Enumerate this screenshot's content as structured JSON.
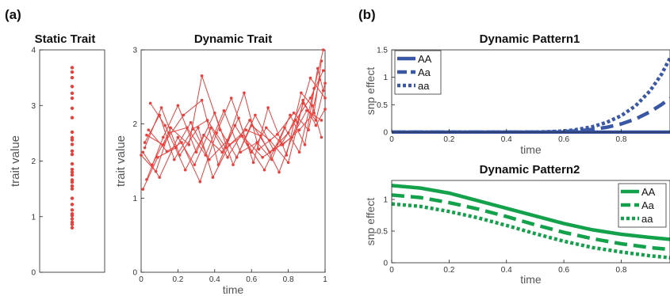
{
  "panel_labels": {
    "a": "(a)",
    "b": "(b)"
  },
  "colors": {
    "red": "#e8403c",
    "blue": "#3a57a6",
    "green": "#13a14b",
    "axis": "#222222",
    "label_gray": "#555555"
  },
  "chart_data": [
    {
      "id": "static",
      "type": "scatter",
      "title": "Static Trait",
      "ylabel": "trait value",
      "xlabel": "",
      "ylim": [
        0,
        4
      ],
      "yticks": [
        "0",
        "1",
        "2",
        "3",
        "4"
      ],
      "xticks": [],
      "values": [
        3.68,
        3.6,
        3.5,
        3.34,
        3.22,
        3.13,
        2.95,
        2.78,
        2.52,
        2.42,
        2.38,
        2.3,
        2.18,
        2.12,
        1.95,
        1.85,
        1.8,
        1.75,
        1.66,
        1.62,
        1.55,
        1.5,
        1.33,
        1.22,
        1.12,
        1.05,
        1.02,
        0.96,
        0.9,
        0.86,
        0.8
      ]
    },
    {
      "id": "dynamic",
      "type": "line",
      "title": "Dynamic Trait",
      "xlabel": "time",
      "ylabel": "trait value",
      "xlim": [
        0,
        1
      ],
      "ylim": [
        0,
        3
      ],
      "xticks": [
        "0",
        "0.2",
        "0.4",
        "0.6",
        "0.8",
        "1"
      ],
      "yticks": [
        "0",
        "1",
        "2",
        "3"
      ],
      "series": [
        {
          "x": [
            0.02,
            0.1,
            0.18,
            0.28,
            0.36,
            0.46,
            0.55,
            0.66,
            0.76,
            0.84,
            0.92,
            0.99
          ],
          "y": [
            1.75,
            2.12,
            1.52,
            1.93,
            2.05,
            1.68,
            1.84,
            1.55,
            1.72,
            2.05,
            2.35,
            2.72
          ]
        },
        {
          "x": [
            0.03,
            0.12,
            0.2,
            0.3,
            0.4,
            0.5,
            0.6,
            0.7,
            0.8,
            0.88,
            0.95,
            1.0
          ],
          "y": [
            1.25,
            1.82,
            2.25,
            1.62,
            2.15,
            1.45,
            1.98,
            1.78,
            1.48,
            2.28,
            2.05,
            2.55
          ]
        },
        {
          "x": [
            0.0,
            0.08,
            0.16,
            0.26,
            0.33,
            0.43,
            0.52,
            0.62,
            0.72,
            0.82,
            0.9,
            0.98
          ],
          "y": [
            1.58,
            1.36,
            1.95,
            1.72,
            2.65,
            1.92,
            1.55,
            2.12,
            1.65,
            1.82,
            2.18,
            2.05
          ]
        },
        {
          "x": [
            0.04,
            0.14,
            0.22,
            0.32,
            0.41,
            0.49,
            0.58,
            0.67,
            0.78,
            0.86,
            0.94,
            0.99
          ],
          "y": [
            1.92,
            1.63,
            1.75,
            1.22,
            1.88,
            2.35,
            1.72,
            1.38,
            1.95,
            1.62,
            2.48,
            3.0
          ]
        },
        {
          "x": [
            0.01,
            0.09,
            0.19,
            0.27,
            0.37,
            0.47,
            0.56,
            0.64,
            0.74,
            0.83,
            0.91,
            0.97
          ],
          "y": [
            1.12,
            1.55,
            1.68,
            2.02,
            1.52,
            1.78,
            2.42,
            1.66,
            1.86,
            2.15,
            1.92,
            2.6
          ]
        },
        {
          "x": [
            0.05,
            0.13,
            0.24,
            0.34,
            0.44,
            0.53,
            0.61,
            0.69,
            0.79,
            0.87,
            0.93,
            0.98
          ],
          "y": [
            2.28,
            1.98,
            1.38,
            1.85,
            1.62,
            2.08,
            1.48,
            2.22,
            1.58,
            2.42,
            2.25,
            1.82
          ]
        },
        {
          "x": [
            0.02,
            0.11,
            0.21,
            0.31,
            0.39,
            0.48,
            0.57,
            0.65,
            0.75,
            0.85,
            0.92,
            1.0
          ],
          "y": [
            1.68,
            2.22,
            1.58,
            1.95,
            1.28,
            1.72,
            1.92,
            1.84,
            1.35,
            2.02,
            2.62,
            2.35
          ]
        },
        {
          "x": [
            0.06,
            0.15,
            0.25,
            0.35,
            0.45,
            0.54,
            0.63,
            0.71,
            0.81,
            0.89,
            0.96,
            0.99
          ],
          "y": [
            1.45,
            1.88,
            1.95,
            1.58,
            2.18,
            1.62,
            1.75,
            1.52,
            2.12,
            1.72,
            2.75,
            2.45
          ]
        },
        {
          "x": [
            0.03,
            0.12,
            0.23,
            0.33,
            0.42,
            0.51,
            0.6,
            0.68,
            0.77,
            0.86,
            0.94,
            0.98
          ],
          "y": [
            1.85,
            1.72,
            2.12,
            2.32,
            1.45,
            1.98,
            1.62,
            1.95,
            1.72,
            1.92,
            2.15,
            2.85
          ]
        },
        {
          "x": [
            0.01,
            0.1,
            0.2,
            0.29,
            0.38,
            0.47,
            0.59,
            0.7,
            0.8,
            0.88,
            0.95,
            1.0
          ],
          "y": [
            1.62,
            1.28,
            1.82,
            1.45,
            1.95,
            1.55,
            2.05,
            1.62,
            1.88,
            2.32,
            1.98,
            2.2
          ]
        }
      ]
    },
    {
      "id": "pattern1",
      "type": "line",
      "title": "Dynamic Pattern1",
      "xlabel": "time",
      "ylabel": "snp effect",
      "xlim": [
        0,
        0.97
      ],
      "ylim": [
        0,
        1.5
      ],
      "xticks": [
        "0",
        "0.2",
        "0.4",
        "0.6",
        "0.8"
      ],
      "yticks": [
        "0",
        "0.5",
        "1",
        "1.5"
      ],
      "legend_position": "top-left",
      "series": [
        {
          "name": "AA",
          "style": "solid",
          "x": [
            0,
            0.1,
            0.2,
            0.3,
            0.4,
            0.5,
            0.6,
            0.7,
            0.8,
            0.9,
            0.97
          ],
          "y": [
            0,
            0,
            0,
            0,
            0,
            0,
            0,
            0,
            0,
            0,
            0
          ]
        },
        {
          "name": "Aa",
          "style": "dashed",
          "x": [
            0,
            0.1,
            0.2,
            0.3,
            0.4,
            0.5,
            0.55,
            0.6,
            0.65,
            0.7,
            0.75,
            0.8,
            0.85,
            0.9,
            0.94,
            0.97
          ],
          "y": [
            0,
            0,
            0,
            0,
            0,
            0,
            0.004,
            0.01,
            0.025,
            0.05,
            0.09,
            0.15,
            0.24,
            0.37,
            0.5,
            0.62
          ]
        },
        {
          "name": "aa",
          "style": "dotted",
          "x": [
            0,
            0.1,
            0.2,
            0.3,
            0.4,
            0.5,
            0.55,
            0.6,
            0.65,
            0.7,
            0.75,
            0.8,
            0.85,
            0.9,
            0.94,
            0.97
          ],
          "y": [
            0,
            0,
            0,
            0,
            0,
            0.002,
            0.008,
            0.02,
            0.05,
            0.1,
            0.18,
            0.3,
            0.48,
            0.75,
            1.05,
            1.35
          ]
        }
      ]
    },
    {
      "id": "pattern2",
      "type": "line",
      "title": "Dynamic Pattern2",
      "xlabel": "time",
      "ylabel": "snp effect",
      "xlim": [
        0,
        0.97
      ],
      "ylim": [
        0,
        1.3
      ],
      "xticks": [
        "0",
        "0.2",
        "0.4",
        "0.6",
        "0.8"
      ],
      "yticks": [
        "0",
        "0.5",
        "1"
      ],
      "legend_position": "top-right",
      "series": [
        {
          "name": "AA",
          "style": "solid",
          "x": [
            0,
            0.1,
            0.2,
            0.3,
            0.4,
            0.5,
            0.6,
            0.7,
            0.8,
            0.9,
            0.97
          ],
          "y": [
            1.22,
            1.18,
            1.1,
            0.98,
            0.86,
            0.74,
            0.62,
            0.52,
            0.45,
            0.4,
            0.37
          ]
        },
        {
          "name": "Aa",
          "style": "dashed",
          "x": [
            0,
            0.1,
            0.2,
            0.3,
            0.4,
            0.5,
            0.6,
            0.7,
            0.8,
            0.9,
            0.97
          ],
          "y": [
            1.07,
            1.03,
            0.95,
            0.85,
            0.73,
            0.6,
            0.48,
            0.38,
            0.3,
            0.24,
            0.21
          ]
        },
        {
          "name": "aa",
          "style": "dotted",
          "x": [
            0,
            0.1,
            0.2,
            0.3,
            0.4,
            0.5,
            0.6,
            0.7,
            0.8,
            0.9,
            0.97
          ],
          "y": [
            0.93,
            0.89,
            0.81,
            0.71,
            0.59,
            0.46,
            0.34,
            0.24,
            0.17,
            0.11,
            0.08
          ]
        }
      ]
    }
  ]
}
